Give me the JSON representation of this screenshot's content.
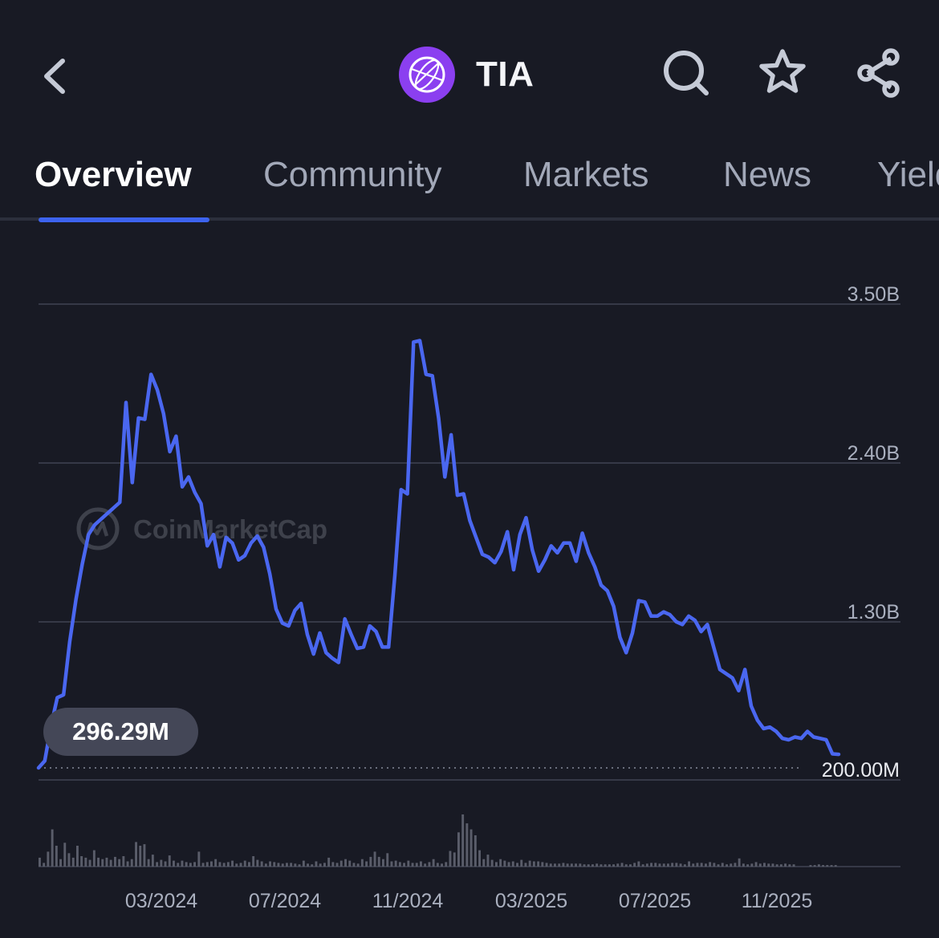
{
  "header": {
    "title": "TIA",
    "icons": [
      "chevron-left-icon",
      "celestia-logo",
      "search-icon",
      "star-icon",
      "share-icon"
    ]
  },
  "tabs": [
    {
      "label": "Overview",
      "active": true
    },
    {
      "label": "Community",
      "active": false
    },
    {
      "label": "Markets",
      "active": false
    },
    {
      "label": "News",
      "active": false
    },
    {
      "label": "Yield",
      "active": false
    }
  ],
  "colors": {
    "background": "#181a24",
    "accent": "#3d63ee",
    "line": "#4a67f0",
    "logo": "#8b3ff0",
    "volume_bars": "#5a5d6a"
  },
  "chart": {
    "watermark": "CoinMarketCap",
    "current_value_badge": "296.29M"
  },
  "chart_data": {
    "type": "line",
    "y_ticks": [
      "3.50B",
      "2.40B",
      "1.30B",
      "200.00M"
    ],
    "ylim": [
      200000000,
      3500000000
    ],
    "x_ticks": [
      "03/2024",
      "07/2024",
      "11/2024",
      "03/2025",
      "07/2025",
      "11/2025"
    ],
    "xlim": [
      "2023-11",
      "2026-01"
    ],
    "grid": true,
    "reference_line_value": 200000000,
    "series": [
      {
        "values": [
          200000000,
          250000000,
          500000000,
          700000000,
          720000000,
          1100000000,
          1400000000,
          1650000000,
          1860000000,
          1930000000,
          1970000000,
          2010000000,
          2050000000,
          2090000000,
          2800000000,
          2230000000,
          2690000000,
          2680000000,
          3000000000,
          2890000000,
          2720000000,
          2450000000,
          2560000000,
          2200000000,
          2270000000,
          2160000000,
          2080000000,
          1780000000,
          1860000000,
          1630000000,
          1840000000,
          1800000000,
          1680000000,
          1710000000,
          1800000000,
          1850000000,
          1770000000,
          1580000000,
          1330000000,
          1230000000,
          1210000000,
          1320000000,
          1370000000,
          1150000000,
          1010000000,
          1160000000,
          1020000000,
          980000000,
          950000000,
          1260000000,
          1150000000,
          1050000000,
          1060000000,
          1210000000,
          1170000000,
          1060000000,
          1060000000,
          1570000000,
          2180000000,
          2150000000,
          3230000000,
          3240000000,
          3000000000,
          2990000000,
          2690000000,
          2270000000,
          2570000000,
          2140000000,
          2150000000,
          1960000000,
          1840000000,
          1720000000,
          1700000000,
          1660000000,
          1740000000,
          1880000000,
          1610000000,
          1860000000,
          1980000000,
          1750000000,
          1600000000,
          1680000000,
          1780000000,
          1730000000,
          1800000000,
          1800000000,
          1670000000,
          1870000000,
          1730000000,
          1630000000,
          1500000000,
          1460000000,
          1350000000,
          1130000000,
          1020000000,
          1160000000,
          1390000000,
          1380000000,
          1280000000,
          1280000000,
          1310000000,
          1290000000,
          1240000000,
          1220000000,
          1280000000,
          1250000000,
          1170000000,
          1220000000,
          1060000000,
          900000000,
          870000000,
          840000000,
          750000000,
          900000000,
          640000000,
          540000000,
          480000000,
          490000000,
          460000000,
          410000000,
          400000000,
          420000000,
          410000000,
          460000000,
          420000000,
          410000000,
          400000000,
          300000000,
          296290000
        ]
      }
    ],
    "volume": [
      12,
      5,
      20,
      50,
      28,
      10,
      32,
      18,
      12,
      28,
      14,
      12,
      9,
      22,
      12,
      10,
      12,
      9,
      13,
      10,
      14,
      7,
      10,
      33,
      28,
      30,
      10,
      16,
      6,
      9,
      7,
      15,
      8,
      5,
      8,
      6,
      5,
      6,
      20,
      5,
      6,
      7,
      10,
      6,
      5,
      6,
      8,
      4,
      5,
      8,
      6,
      14,
      9,
      7,
      4,
      7,
      6,
      5,
      4,
      5,
      5,
      4,
      3,
      8,
      4,
      3,
      7,
      4,
      5,
      12,
      6,
      5,
      8,
      10,
      8,
      5,
      4,
      10,
      7,
      13,
      20,
      13,
      10,
      18,
      7,
      8,
      6,
      5,
      8,
      5,
      5,
      7,
      4,
      6,
      10,
      5,
      4,
      6,
      21,
      19,
      46,
      70,
      58,
      50,
      42,
      22,
      10,
      16,
      9,
      6,
      10,
      8,
      6,
      7,
      5,
      9,
      5,
      8,
      7,
      7,
      6,
      5,
      4,
      4,
      4,
      5,
      4,
      4,
      4,
      4,
      3,
      3,
      3,
      4,
      3,
      3,
      3,
      3,
      4,
      5,
      3,
      3,
      5,
      7,
      3,
      4,
      5,
      5,
      4,
      4,
      4,
      5,
      5,
      4,
      3,
      7,
      4,
      5,
      5,
      4,
      6,
      5,
      3,
      5,
      3,
      4,
      5,
      11,
      4,
      3,
      4,
      6,
      4,
      5,
      4,
      4,
      3,
      3,
      4,
      3,
      3,
      0,
      0,
      0,
      2,
      2,
      3,
      2,
      2,
      2,
      2
    ]
  }
}
